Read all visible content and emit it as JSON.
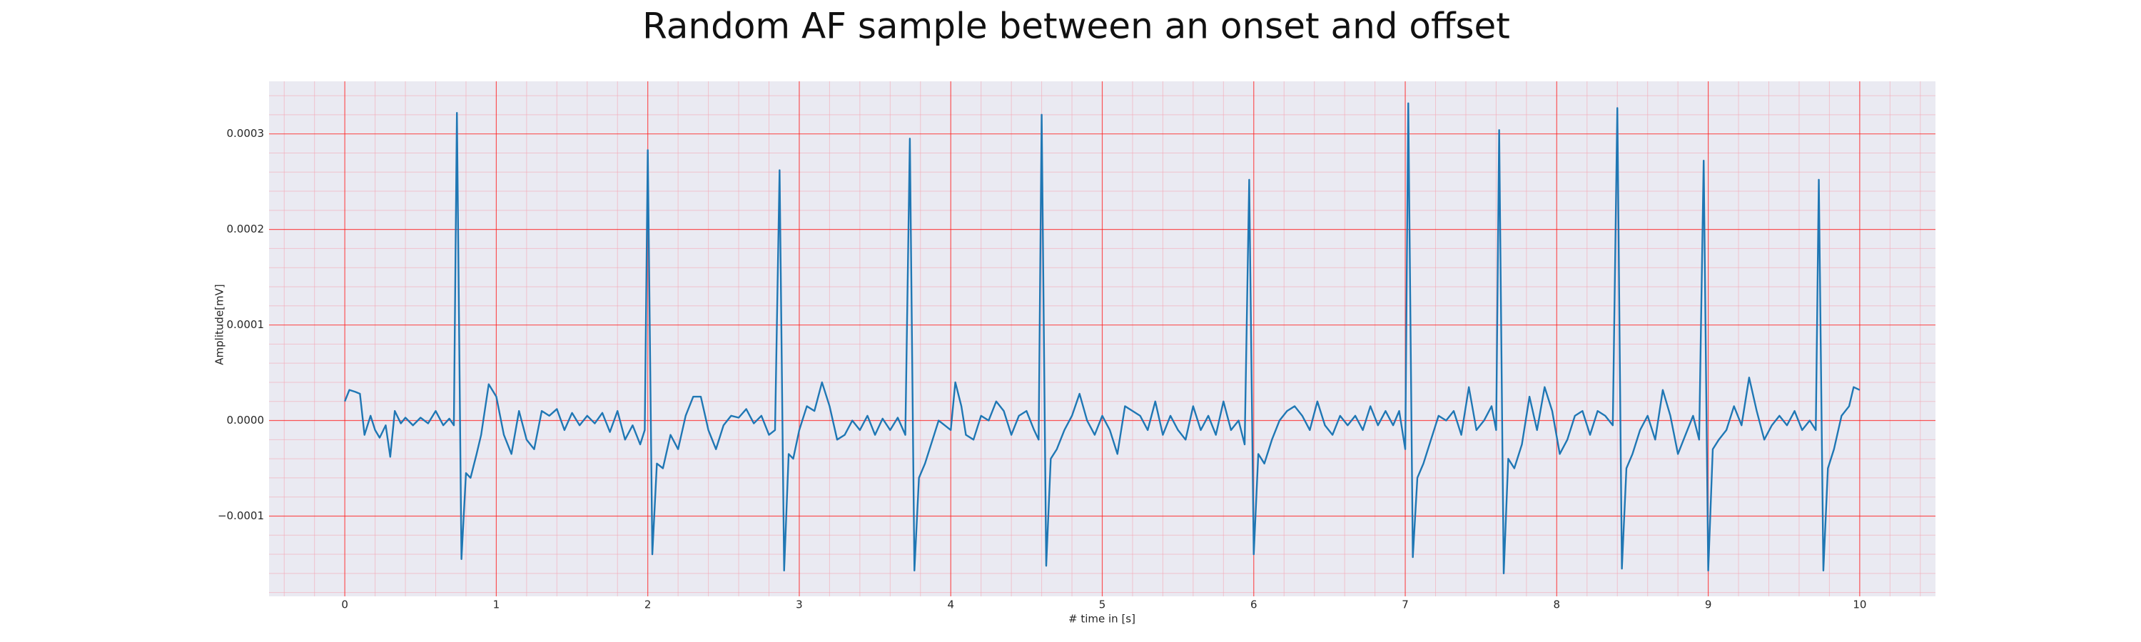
{
  "chart_data": {
    "type": "line",
    "title": "Random AF sample between an onset and offset",
    "xlabel": "# time in [s]",
    "ylabel": "Amplitude[mV]",
    "color": "#1f77b4",
    "grid": true,
    "minor_grid": true,
    "xlim": [
      -0.5,
      10.5
    ],
    "ylim": [
      -0.000184,
      0.000355
    ],
    "xticks": [
      0,
      1,
      2,
      3,
      4,
      5,
      6,
      7,
      8,
      9,
      10
    ],
    "yticks": [
      {
        "value": -0.0001,
        "label": "−0.0001"
      },
      {
        "value": 0,
        "label": "0.0000"
      },
      0.0001,
      0.0002,
      0.0003
    ],
    "x": [
      0.0,
      0.03,
      0.07,
      0.1,
      0.13,
      0.17,
      0.2,
      0.23,
      0.27,
      0.3,
      0.33,
      0.37,
      0.4,
      0.45,
      0.5,
      0.55,
      0.6,
      0.65,
      0.69,
      0.72,
      0.74,
      0.77,
      0.8,
      0.83,
      0.87,
      0.9,
      0.95,
      1.0,
      1.05,
      1.1,
      1.15,
      1.2,
      1.25,
      1.3,
      1.35,
      1.4,
      1.45,
      1.5,
      1.55,
      1.6,
      1.65,
      1.7,
      1.75,
      1.8,
      1.85,
      1.9,
      1.95,
      1.98,
      2.0,
      2.03,
      2.06,
      2.1,
      2.15,
      2.2,
      2.25,
      2.3,
      2.35,
      2.4,
      2.45,
      2.5,
      2.55,
      2.6,
      2.65,
      2.7,
      2.75,
      2.8,
      2.84,
      2.87,
      2.9,
      2.93,
      2.96,
      3.0,
      3.05,
      3.1,
      3.15,
      3.2,
      3.25,
      3.3,
      3.35,
      3.4,
      3.45,
      3.5,
      3.55,
      3.6,
      3.65,
      3.7,
      3.73,
      3.76,
      3.79,
      3.83,
      3.88,
      3.92,
      3.96,
      4.0,
      4.03,
      4.07,
      4.1,
      4.15,
      4.2,
      4.25,
      4.3,
      4.35,
      4.4,
      4.45,
      4.5,
      4.55,
      4.58,
      4.6,
      4.63,
      4.66,
      4.7,
      4.75,
      4.8,
      4.85,
      4.9,
      4.95,
      5.0,
      5.05,
      5.1,
      5.15,
      5.2,
      5.25,
      5.3,
      5.35,
      5.4,
      5.45,
      5.5,
      5.55,
      5.6,
      5.65,
      5.7,
      5.75,
      5.8,
      5.85,
      5.9,
      5.94,
      5.97,
      6.0,
      6.03,
      6.07,
      6.12,
      6.17,
      6.22,
      6.27,
      6.32,
      6.37,
      6.42,
      6.47,
      6.52,
      6.57,
      6.62,
      6.67,
      6.72,
      6.77,
      6.82,
      6.87,
      6.92,
      6.96,
      7.0,
      7.02,
      7.05,
      7.08,
      7.12,
      7.17,
      7.22,
      7.27,
      7.32,
      7.37,
      7.42,
      7.47,
      7.52,
      7.57,
      7.6,
      7.62,
      7.65,
      7.68,
      7.72,
      7.77,
      7.82,
      7.87,
      7.92,
      7.97,
      8.02,
      8.07,
      8.12,
      8.17,
      8.22,
      8.27,
      8.32,
      8.37,
      8.4,
      8.43,
      8.46,
      8.5,
      8.55,
      8.6,
      8.65,
      8.7,
      8.75,
      8.8,
      8.85,
      8.9,
      8.94,
      8.97,
      9.0,
      9.03,
      9.07,
      9.12,
      9.17,
      9.22,
      9.27,
      9.32,
      9.37,
      9.42,
      9.47,
      9.52,
      9.57,
      9.62,
      9.67,
      9.71,
      9.73,
      9.76,
      9.79,
      9.83,
      9.88,
      9.93,
      9.96,
      10.0
    ],
    "values": [
      2e-05,
      3.2e-05,
      3e-05,
      2.8e-05,
      -1.5e-05,
      5e-06,
      -1e-05,
      -1.8e-05,
      -5e-06,
      -3.8e-05,
      1e-05,
      -3e-06,
      3e-06,
      -5e-06,
      3e-06,
      -3e-06,
      1e-05,
      -5e-06,
      2e-06,
      -5e-06,
      0.000322,
      -0.000145,
      -5.5e-05,
      -6e-05,
      -3.5e-05,
      -1.5e-05,
      3.8e-05,
      2.5e-05,
      -1.5e-05,
      -3.5e-05,
      1e-05,
      -2e-05,
      -3e-05,
      1e-05,
      5e-06,
      1.2e-05,
      -1e-05,
      8e-06,
      -5e-06,
      5e-06,
      -3e-06,
      8e-06,
      -1.2e-05,
      1e-05,
      -2e-05,
      -5e-06,
      -2.5e-05,
      -1e-05,
      0.000283,
      -0.00014,
      -4.5e-05,
      -5e-05,
      -1.5e-05,
      -3e-05,
      5e-06,
      2.5e-05,
      2.5e-05,
      -1e-05,
      -3e-05,
      -5e-06,
      5e-06,
      3e-06,
      1.2e-05,
      -3e-06,
      5e-06,
      -1.5e-05,
      -1e-05,
      0.000262,
      -0.000157,
      -3.5e-05,
      -4e-05,
      -1e-05,
      1.5e-05,
      1e-05,
      4e-05,
      1.5e-05,
      -2e-05,
      -1.5e-05,
      0.0,
      -1e-05,
      5e-06,
      -1.5e-05,
      2e-06,
      -1e-05,
      3e-06,
      -1.5e-05,
      0.000295,
      -0.000157,
      -6e-05,
      -4.5e-05,
      -2e-05,
      0.0,
      -5e-06,
      -1e-05,
      4e-05,
      1.5e-05,
      -1.5e-05,
      -2e-05,
      5e-06,
      0.0,
      2e-05,
      1e-05,
      -1.5e-05,
      5e-06,
      1e-05,
      -1e-05,
      -2e-05,
      0.00032,
      -0.000152,
      -4e-05,
      -3e-05,
      -1e-05,
      5e-06,
      2.8e-05,
      0.0,
      -1.5e-05,
      5e-06,
      -1e-05,
      -3.5e-05,
      1.5e-05,
      1e-05,
      5e-06,
      -1e-05,
      2e-05,
      -1.5e-05,
      5e-06,
      -1e-05,
      -2e-05,
      1.5e-05,
      -1e-05,
      5e-06,
      -1.5e-05,
      2e-05,
      -1e-05,
      0.0,
      -2.5e-05,
      0.000252,
      -0.00014,
      -3.5e-05,
      -4.5e-05,
      -2e-05,
      0.0,
      1e-05,
      1.5e-05,
      5e-06,
      -1e-05,
      2e-05,
      -5e-06,
      -1.5e-05,
      5e-06,
      -5e-06,
      5e-06,
      -1e-05,
      1.5e-05,
      -5e-06,
      1e-05,
      -5e-06,
      1e-05,
      -3e-05,
      0.000332,
      -0.000143,
      -6e-05,
      -4.5e-05,
      -2e-05,
      5e-06,
      0.0,
      1e-05,
      -1.5e-05,
      3.5e-05,
      -1e-05,
      0.0,
      1.5e-05,
      -1e-05,
      0.000304,
      -0.00016,
      -4e-05,
      -5e-05,
      -2.5e-05,
      2.5e-05,
      -1e-05,
      3.5e-05,
      1e-05,
      -3.5e-05,
      -2e-05,
      5e-06,
      1e-05,
      -1.5e-05,
      1e-05,
      5e-06,
      -5e-06,
      0.000327,
      -0.000155,
      -5e-05,
      -3.5e-05,
      -1e-05,
      5e-06,
      -2e-05,
      3.2e-05,
      5e-06,
      -3.5e-05,
      -1.5e-05,
      5e-06,
      -2e-05,
      0.000272,
      -0.000157,
      -3e-05,
      -2e-05,
      -1e-05,
      1.5e-05,
      -5e-06,
      4.5e-05,
      1e-05,
      -2e-05,
      -5e-06,
      5e-06,
      -5e-06,
      1e-05,
      -1e-05,
      0.0,
      -1e-05,
      0.000252,
      -0.000157,
      -5e-05,
      -3e-05,
      5e-06,
      1.5e-05,
      3.5e-05,
      3.2e-05
    ]
  }
}
